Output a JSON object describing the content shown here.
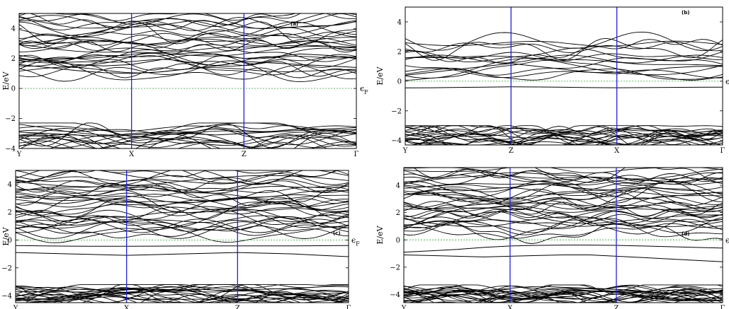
{
  "chart_data": [
    {
      "type": "line",
      "panel_label": "(a)",
      "ylabel": "E/eV",
      "fermi_label": "ϵF",
      "ylim": [
        -4,
        5
      ],
      "yticks": [
        -4,
        -2,
        0,
        2,
        4
      ],
      "kpoints": [
        "Y",
        "X",
        "Z",
        "Γ"
      ],
      "kpoint_positions": [
        0,
        1,
        2,
        3
      ],
      "fermi_level": 0,
      "fermi_color": "#4caf50",
      "kpath_line_color": "#2222dd",
      "band_color": "#000000",
      "bands": {
        "conduction": {
          "count": 30,
          "min": 0.9,
          "max": 4.9
        },
        "valence": {
          "count": 16,
          "min": -4.0,
          "max": -2.5
        }
      },
      "x": [
        0,
        0.25,
        0.5,
        0.75,
        1,
        1.25,
        1.5,
        1.75,
        2,
        2.25,
        2.5,
        2.75,
        3
      ],
      "series": [
        {
          "values": [
            1.6,
            1.4,
            1.2,
            1.05,
            1.0,
            1.1,
            1.3,
            1.5,
            1.8,
            1.7,
            1.6,
            1.5,
            1.4
          ]
        },
        {
          "values": [
            2.0,
            1.8,
            1.6,
            1.5,
            1.6,
            1.9,
            2.2,
            2.3,
            2.0,
            2.1,
            2.3,
            2.2,
            2.0
          ]
        },
        {
          "values": [
            -2.9,
            -3.0,
            -3.1,
            -3.2,
            -3.0,
            -2.9,
            -3.0,
            -3.1,
            -3.0,
            -2.9,
            -2.8,
            -2.7,
            -2.6
          ]
        }
      ]
    },
    {
      "type": "line",
      "panel_label": "(b)",
      "ylabel": "E/eV",
      "fermi_label": "ϵ",
      "ylim": [
        -4.3,
        5
      ],
      "yticks": [
        -4,
        -2,
        0,
        2,
        4
      ],
      "kpoints": [
        "Y",
        "Z",
        "X",
        "Γ"
      ],
      "kpoint_positions": [
        0,
        1,
        2,
        3
      ],
      "fermi_level": 0,
      "fermi_color": "#4caf50",
      "kpath_line_color": "#2222dd",
      "band_color": "#000000",
      "bands": {
        "conduction": {
          "count": 14,
          "min": 0.3,
          "max": 2.8
        },
        "valence": {
          "count": 20,
          "min": -4.3,
          "max": -3.2
        }
      },
      "x": [
        0,
        0.25,
        0.5,
        0.75,
        1,
        1.25,
        1.5,
        1.75,
        2,
        2.25,
        2.5,
        2.75,
        3
      ],
      "series": [
        {
          "values": [
            -0.45,
            -0.44,
            -0.42,
            -0.4,
            -0.38,
            -0.39,
            -0.41,
            -0.43,
            -0.44,
            -0.43,
            -0.42,
            -0.41,
            -0.4
          ]
        },
        {
          "values": [
            0.4,
            0.6,
            0.8,
            1.0,
            1.2,
            1.0,
            0.8,
            0.6,
            0.5,
            0.7,
            0.9,
            1.0,
            1.0
          ]
        }
      ]
    },
    {
      "type": "line",
      "panel_label": "(c)",
      "ylabel": "E/eV",
      "fermi_label": "ϵF",
      "ylim": [
        -4.5,
        5
      ],
      "yticks": [
        -4,
        -2,
        0,
        2,
        4
      ],
      "kpoints": [
        "Y",
        "X",
        "Z",
        "Γ"
      ],
      "kpoint_positions": [
        0,
        1,
        2,
        3
      ],
      "fermi_level": 0,
      "fermi_color": "#4caf50",
      "kpath_line_color": "#2222dd",
      "band_color": "#000000",
      "bands": {
        "conduction": {
          "count": 36,
          "min": 0.4,
          "max": 4.9
        },
        "valence": {
          "count": 22,
          "min": -4.5,
          "max": -3.4
        }
      },
      "x": [
        0,
        0.25,
        0.5,
        0.75,
        1,
        1.25,
        1.5,
        1.75,
        2,
        2.25,
        2.5,
        2.75,
        3
      ],
      "series": [
        {
          "values": [
            -0.4,
            -0.42,
            -0.44,
            -0.45,
            -0.45,
            -0.44,
            -0.43,
            -0.42,
            -0.42,
            -0.42,
            -0.42,
            -0.41,
            -0.4
          ]
        },
        {
          "values": [
            -0.9,
            -0.95,
            -1.0,
            -1.05,
            -1.1,
            -1.05,
            -1.0,
            -0.95,
            -0.9,
            -0.95,
            -1.0,
            -1.1,
            -1.2
          ]
        }
      ]
    },
    {
      "type": "line",
      "panel_label": "(d)",
      "ylabel": "E/eV",
      "fermi_label": "ϵ",
      "ylim": [
        -4.6,
        5.3
      ],
      "yticks": [
        -4,
        -2,
        0,
        2,
        4
      ],
      "kpoints": [
        "Y",
        "X",
        "Z",
        "Γ"
      ],
      "kpoint_positions": [
        0,
        1,
        2,
        3
      ],
      "fermi_level": 0,
      "fermi_color": "#4caf50",
      "kpath_line_color": "#2222dd",
      "band_color": "#000000",
      "bands": {
        "conduction": {
          "count": 38,
          "min": 0.5,
          "max": 5.2
        },
        "valence": {
          "count": 24,
          "min": -4.6,
          "max": -3.5
        }
      },
      "x": [
        0,
        0.25,
        0.5,
        0.75,
        1,
        1.25,
        1.5,
        1.75,
        2,
        2.25,
        2.5,
        2.75,
        3
      ],
      "series": [
        {
          "values": [
            -0.9,
            -0.8,
            -0.7,
            -0.55,
            -0.45,
            -0.4,
            -0.38,
            -0.38,
            -0.4,
            -0.45,
            -0.5,
            -0.55,
            -0.6
          ]
        },
        {
          "values": [
            -1.1,
            -1.15,
            -1.2,
            -1.25,
            -1.2,
            -1.15,
            -1.1,
            -1.1,
            -1.2,
            -1.3,
            -1.4,
            -1.5,
            -1.6
          ]
        }
      ]
    }
  ]
}
